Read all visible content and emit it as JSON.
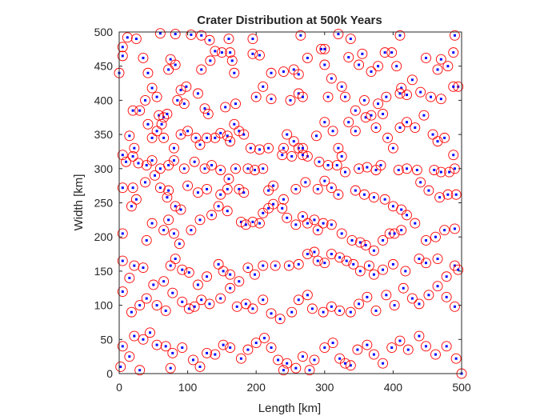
{
  "chart_data": {
    "type": "scatter",
    "title": "Crater Distribution at 500k Years",
    "xlabel": "Length [km]",
    "ylabel": "Width [km]",
    "xlim": [
      0,
      500
    ],
    "ylim": [
      0,
      500
    ],
    "xticks": [
      0,
      100,
      200,
      300,
      400,
      500
    ],
    "yticks": [
      0,
      50,
      100,
      150,
      200,
      250,
      300,
      350,
      400,
      450,
      500
    ],
    "xtick_labels": [
      "0",
      "100",
      "200",
      "300",
      "400",
      "500"
    ],
    "ytick_labels": [
      "0",
      "50",
      "100",
      "150",
      "200",
      "250",
      "300",
      "350",
      "400",
      "450",
      "500"
    ],
    "grid": false,
    "marker_center_color": "#0000ff",
    "marker_ring_color": "#ff0000",
    "crater_radius_km": 7,
    "points": [
      [
        5,
        478
      ],
      [
        12,
        492
      ],
      [
        25,
        490
      ],
      [
        60,
        498
      ],
      [
        82,
        497
      ],
      [
        105,
        496
      ],
      [
        120,
        495
      ],
      [
        132,
        488
      ],
      [
        160,
        490
      ],
      [
        195,
        490
      ],
      [
        265,
        495
      ],
      [
        320,
        497
      ],
      [
        338,
        490
      ],
      [
        410,
        495
      ],
      [
        490,
        495
      ],
      [
        5,
        465
      ],
      [
        35,
        462
      ],
      [
        42,
        440
      ],
      [
        75,
        460
      ],
      [
        82,
        452
      ],
      [
        72,
        445
      ],
      [
        90,
        415
      ],
      [
        85,
        400
      ],
      [
        120,
        445
      ],
      [
        133,
        458
      ],
      [
        140,
        472
      ],
      [
        150,
        470
      ],
      [
        162,
        470
      ],
      [
        165,
        458
      ],
      [
        168,
        440
      ],
      [
        195,
        468
      ],
      [
        205,
        466
      ],
      [
        222,
        440
      ],
      [
        240,
        442
      ],
      [
        255,
        445
      ],
      [
        262,
        438
      ],
      [
        275,
        462
      ],
      [
        295,
        475
      ],
      [
        300,
        475
      ],
      [
        300,
        452
      ],
      [
        310,
        432
      ],
      [
        335,
        463
      ],
      [
        355,
        468
      ],
      [
        350,
        452
      ],
      [
        368,
        442
      ],
      [
        378,
        450
      ],
      [
        388,
        470
      ],
      [
        398,
        470
      ],
      [
        405,
        450
      ],
      [
        412,
        418
      ],
      [
        428,
        430
      ],
      [
        448,
        462
      ],
      [
        470,
        460
      ],
      [
        480,
        450
      ],
      [
        495,
        420
      ],
      [
        488,
        470
      ],
      [
        465,
        445
      ],
      [
        0,
        440
      ],
      [
        20,
        385
      ],
      [
        38,
        400
      ],
      [
        48,
        418
      ],
      [
        55,
        405
      ],
      [
        58,
        378
      ],
      [
        65,
        375
      ],
      [
        70,
        380
      ],
      [
        95,
        395
      ],
      [
        98,
        420
      ],
      [
        115,
        410
      ],
      [
        125,
        388
      ],
      [
        130,
        380
      ],
      [
        155,
        390
      ],
      [
        170,
        395
      ],
      [
        200,
        405
      ],
      [
        210,
        420
      ],
      [
        222,
        402
      ],
      [
        250,
        400
      ],
      [
        262,
        410
      ],
      [
        268,
        405
      ],
      [
        305,
        405
      ],
      [
        325,
        420
      ],
      [
        330,
        405
      ],
      [
        345,
        385
      ],
      [
        358,
        400
      ],
      [
        378,
        395
      ],
      [
        390,
        405
      ],
      [
        410,
        410
      ],
      [
        420,
        408
      ],
      [
        440,
        412
      ],
      [
        455,
        405
      ],
      [
        470,
        402
      ],
      [
        488,
        420
      ],
      [
        15,
        348
      ],
      [
        22,
        330
      ],
      [
        30,
        385
      ],
      [
        42,
        365
      ],
      [
        48,
        345
      ],
      [
        55,
        355
      ],
      [
        62,
        365
      ],
      [
        65,
        345
      ],
      [
        80,
        330
      ],
      [
        90,
        350
      ],
      [
        100,
        355
      ],
      [
        112,
        345
      ],
      [
        118,
        335
      ],
      [
        128,
        345
      ],
      [
        140,
        345
      ],
      [
        148,
        352
      ],
      [
        158,
        348
      ],
      [
        162,
        340
      ],
      [
        168,
        365
      ],
      [
        175,
        355
      ],
      [
        182,
        350
      ],
      [
        192,
        330
      ],
      [
        205,
        328
      ],
      [
        218,
        330
      ],
      [
        240,
        330
      ],
      [
        245,
        350
      ],
      [
        255,
        340
      ],
      [
        262,
        330
      ],
      [
        268,
        330
      ],
      [
        275,
        318
      ],
      [
        288,
        348
      ],
      [
        300,
        368
      ],
      [
        312,
        355
      ],
      [
        320,
        330
      ],
      [
        325,
        318
      ],
      [
        335,
        368
      ],
      [
        345,
        355
      ],
      [
        360,
        375
      ],
      [
        368,
        378
      ],
      [
        375,
        360
      ],
      [
        385,
        380
      ],
      [
        392,
        345
      ],
      [
        400,
        330
      ],
      [
        410,
        360
      ],
      [
        420,
        368
      ],
      [
        432,
        360
      ],
      [
        445,
        378
      ],
      [
        458,
        350
      ],
      [
        465,
        340
      ],
      [
        475,
        345
      ],
      [
        488,
        320
      ],
      [
        5,
        320
      ],
      [
        10,
        310
      ],
      [
        20,
        318
      ],
      [
        28,
        308
      ],
      [
        40,
        305
      ],
      [
        48,
        312
      ],
      [
        60,
        300
      ],
      [
        72,
        305
      ],
      [
        80,
        312
      ],
      [
        95,
        300
      ],
      [
        110,
        310
      ],
      [
        125,
        300
      ],
      [
        135,
        305
      ],
      [
        148,
        298
      ],
      [
        160,
        285
      ],
      [
        170,
        300
      ],
      [
        188,
        300
      ],
      [
        198,
        298
      ],
      [
        210,
        300
      ],
      [
        238,
        320
      ],
      [
        252,
        318
      ],
      [
        268,
        320
      ],
      [
        292,
        310
      ],
      [
        305,
        305
      ],
      [
        318,
        305
      ],
      [
        330,
        295
      ],
      [
        350,
        300
      ],
      [
        362,
        302
      ],
      [
        375,
        298
      ],
      [
        382,
        305
      ],
      [
        408,
        298
      ],
      [
        420,
        300
      ],
      [
        435,
        298
      ],
      [
        460,
        298
      ],
      [
        470,
        295
      ],
      [
        482,
        295
      ],
      [
        490,
        300
      ],
      [
        5,
        272
      ],
      [
        20,
        272
      ],
      [
        25,
        255
      ],
      [
        38,
        280
      ],
      [
        52,
        290
      ],
      [
        60,
        272
      ],
      [
        72,
        268
      ],
      [
        70,
        258
      ],
      [
        82,
        245
      ],
      [
        90,
        240
      ],
      [
        100,
        275
      ],
      [
        115,
        265
      ],
      [
        128,
        270
      ],
      [
        148,
        262
      ],
      [
        158,
        270
      ],
      [
        175,
        270
      ],
      [
        182,
        265
      ],
      [
        218,
        268
      ],
      [
        225,
        275
      ],
      [
        240,
        255
      ],
      [
        258,
        270
      ],
      [
        272,
        280
      ],
      [
        290,
        270
      ],
      [
        300,
        282
      ],
      [
        310,
        272
      ],
      [
        320,
        262
      ],
      [
        345,
        268
      ],
      [
        358,
        262
      ],
      [
        372,
        258
      ],
      [
        388,
        255
      ],
      [
        400,
        245
      ],
      [
        412,
        240
      ],
      [
        440,
        280
      ],
      [
        452,
        268
      ],
      [
        468,
        258
      ],
      [
        480,
        262
      ],
      [
        492,
        262
      ],
      [
        5,
        205
      ],
      [
        18,
        245
      ],
      [
        40,
        195
      ],
      [
        48,
        220
      ],
      [
        65,
        210
      ],
      [
        72,
        225
      ],
      [
        80,
        205
      ],
      [
        88,
        190
      ],
      [
        105,
        210
      ],
      [
        118,
        225
      ],
      [
        135,
        232
      ],
      [
        145,
        245
      ],
      [
        158,
        238
      ],
      [
        178,
        222
      ],
      [
        185,
        218
      ],
      [
        195,
        222
      ],
      [
        205,
        220
      ],
      [
        210,
        235
      ],
      [
        218,
        242
      ],
      [
        225,
        248
      ],
      [
        238,
        242
      ],
      [
        245,
        228
      ],
      [
        258,
        218
      ],
      [
        268,
        230
      ],
      [
        275,
        220
      ],
      [
        285,
        225
      ],
      [
        290,
        210
      ],
      [
        298,
        220
      ],
      [
        310,
        218
      ],
      [
        325,
        205
      ],
      [
        340,
        195
      ],
      [
        352,
        192
      ],
      [
        360,
        188
      ],
      [
        372,
        180
      ],
      [
        385,
        195
      ],
      [
        395,
        205
      ],
      [
        402,
        205
      ],
      [
        412,
        210
      ],
      [
        420,
        232
      ],
      [
        432,
        220
      ],
      [
        448,
        195
      ],
      [
        462,
        200
      ],
      [
        475,
        210
      ],
      [
        490,
        212
      ],
      [
        5,
        165
      ],
      [
        15,
        140
      ],
      [
        22,
        158
      ],
      [
        35,
        155
      ],
      [
        50,
        130
      ],
      [
        65,
        135
      ],
      [
        75,
        158
      ],
      [
        82,
        168
      ],
      [
        92,
        152
      ],
      [
        102,
        148
      ],
      [
        115,
        130
      ],
      [
        128,
        142
      ],
      [
        145,
        160
      ],
      [
        152,
        150
      ],
      [
        162,
        145
      ],
      [
        175,
        135
      ],
      [
        188,
        155
      ],
      [
        198,
        145
      ],
      [
        210,
        158
      ],
      [
        228,
        158
      ],
      [
        248,
        158
      ],
      [
        262,
        160
      ],
      [
        275,
        175
      ],
      [
        285,
        178
      ],
      [
        290,
        165
      ],
      [
        300,
        162
      ],
      [
        310,
        175
      ],
      [
        322,
        170
      ],
      [
        332,
        165
      ],
      [
        342,
        160
      ],
      [
        352,
        150
      ],
      [
        365,
        158
      ],
      [
        372,
        145
      ],
      [
        385,
        152
      ],
      [
        400,
        160
      ],
      [
        418,
        150
      ],
      [
        438,
        168
      ],
      [
        448,
        162
      ],
      [
        465,
        168
      ],
      [
        478,
        142
      ],
      [
        490,
        158
      ],
      [
        495,
        152
      ],
      [
        5,
        120
      ],
      [
        18,
        90
      ],
      [
        30,
        100
      ],
      [
        40,
        110
      ],
      [
        55,
        100
      ],
      [
        68,
        92
      ],
      [
        78,
        118
      ],
      [
        92,
        105
      ],
      [
        102,
        95
      ],
      [
        110,
        98
      ],
      [
        120,
        108
      ],
      [
        132,
        102
      ],
      [
        148,
        110
      ],
      [
        162,
        125
      ],
      [
        172,
        98
      ],
      [
        185,
        102
      ],
      [
        195,
        95
      ],
      [
        210,
        108
      ],
      [
        222,
        88
      ],
      [
        235,
        80
      ],
      [
        252,
        90
      ],
      [
        262,
        108
      ],
      [
        275,
        115
      ],
      [
        282,
        95
      ],
      [
        298,
        90
      ],
      [
        310,
        98
      ],
      [
        322,
        92
      ],
      [
        338,
        90
      ],
      [
        350,
        102
      ],
      [
        362,
        112
      ],
      [
        375,
        92
      ],
      [
        390,
        115
      ],
      [
        402,
        100
      ],
      [
        415,
        125
      ],
      [
        428,
        110
      ],
      [
        438,
        102
      ],
      [
        452,
        115
      ],
      [
        465,
        128
      ],
      [
        478,
        112
      ],
      [
        490,
        98
      ],
      [
        5,
        40
      ],
      [
        15,
        25
      ],
      [
        22,
        55
      ],
      [
        35,
        50
      ],
      [
        45,
        60
      ],
      [
        55,
        42
      ],
      [
        68,
        40
      ],
      [
        78,
        30
      ],
      [
        92,
        38
      ],
      [
        108,
        20
      ],
      [
        118,
        10
      ],
      [
        128,
        30
      ],
      [
        140,
        28
      ],
      [
        152,
        42
      ],
      [
        162,
        38
      ],
      [
        178,
        22
      ],
      [
        188,
        35
      ],
      [
        200,
        45
      ],
      [
        212,
        52
      ],
      [
        222,
        38
      ],
      [
        232,
        20
      ],
      [
        245,
        15
      ],
      [
        258,
        8
      ],
      [
        268,
        25
      ],
      [
        285,
        20
      ],
      [
        300,
        38
      ],
      [
        312,
        45
      ],
      [
        322,
        22
      ],
      [
        338,
        12
      ],
      [
        348,
        35
      ],
      [
        362,
        42
      ],
      [
        372,
        28
      ],
      [
        385,
        15
      ],
      [
        398,
        38
      ],
      [
        410,
        48
      ],
      [
        422,
        35
      ],
      [
        438,
        55
      ],
      [
        448,
        40
      ],
      [
        462,
        28
      ],
      [
        478,
        40
      ],
      [
        492,
        22
      ],
      [
        2,
        10
      ],
      [
        30,
        5
      ],
      [
        75,
        8
      ],
      [
        240,
        5
      ],
      [
        278,
        5
      ],
      [
        330,
        15
      ],
      [
        500,
        0
      ]
    ]
  }
}
